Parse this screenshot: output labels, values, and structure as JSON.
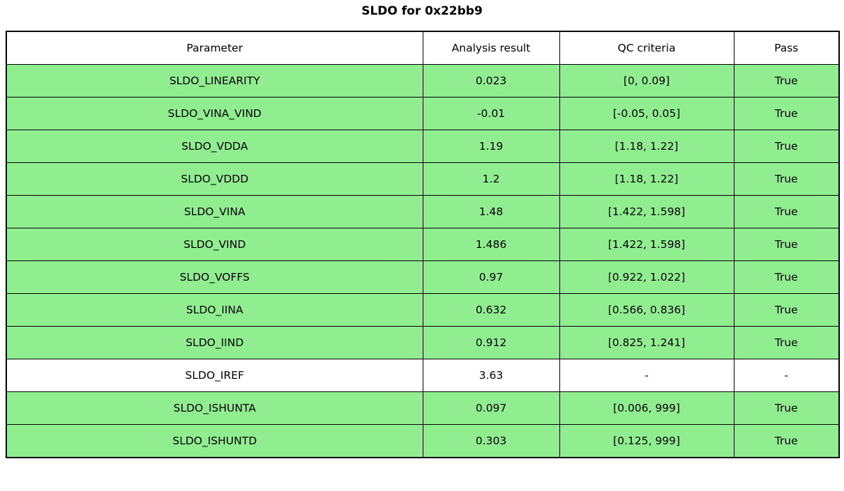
{
  "title": "SLDO for 0x22bb9",
  "colors": {
    "row_highlight_green": "#90ee90",
    "row_plain_white": "#ffffff",
    "border_black": "#000000"
  },
  "chart_data": {
    "type": "table",
    "title": "SLDO for 0x22bb9",
    "columns": [
      "Parameter",
      "Analysis result",
      "QC criteria",
      "Pass"
    ],
    "rows": [
      {
        "parameter": "SLDO_LINEARITY",
        "result": "0.023",
        "criteria": "[0, 0.09]",
        "pass": "True",
        "highlight": true
      },
      {
        "parameter": "SLDO_VINA_VIND",
        "result": "-0.01",
        "criteria": "[-0.05, 0.05]",
        "pass": "True",
        "highlight": true
      },
      {
        "parameter": "SLDO_VDDA",
        "result": "1.19",
        "criteria": "[1.18, 1.22]",
        "pass": "True",
        "highlight": true
      },
      {
        "parameter": "SLDO_VDDD",
        "result": "1.2",
        "criteria": "[1.18, 1.22]",
        "pass": "True",
        "highlight": true
      },
      {
        "parameter": "SLDO_VINA",
        "result": "1.48",
        "criteria": "[1.422, 1.598]",
        "pass": "True",
        "highlight": true
      },
      {
        "parameter": "SLDO_VIND",
        "result": "1.486",
        "criteria": "[1.422, 1.598]",
        "pass": "True",
        "highlight": true
      },
      {
        "parameter": "SLDO_VOFFS",
        "result": "0.97",
        "criteria": "[0.922, 1.022]",
        "pass": "True",
        "highlight": true
      },
      {
        "parameter": "SLDO_IINA",
        "result": "0.632",
        "criteria": "[0.566, 0.836]",
        "pass": "True",
        "highlight": true
      },
      {
        "parameter": "SLDO_IIND",
        "result": "0.912",
        "criteria": "[0.825, 1.241]",
        "pass": "True",
        "highlight": true
      },
      {
        "parameter": "SLDO_IREF",
        "result": "3.63",
        "criteria": "-",
        "pass": "-",
        "highlight": false
      },
      {
        "parameter": "SLDO_ISHUNTA",
        "result": "0.097",
        "criteria": "[0.006, 999]",
        "pass": "True",
        "highlight": true
      },
      {
        "parameter": "SLDO_ISHUNTD",
        "result": "0.303",
        "criteria": "[0.125, 999]",
        "pass": "True",
        "highlight": true
      }
    ]
  }
}
